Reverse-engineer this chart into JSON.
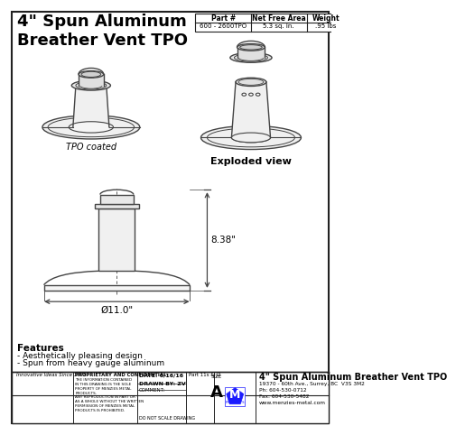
{
  "title": "4\" Spun Aluminum\nBreather Vent TPO",
  "bg_color": "#ffffff",
  "table_headers": [
    "Part #",
    "Net Free Area",
    "Weight"
  ],
  "table_values": [
    "600 - 2600TPO",
    "5.3 sq. in.",
    ".95 lbs"
  ],
  "label_tpo": "TPO coated",
  "label_exploded": "Exploded view",
  "dim_height": "8.38\"",
  "dim_width": "Ø11.0\"",
  "features_title": "Features",
  "features": [
    "- Aesthetically pleasing design",
    "- Spun from heavy gauge aluminum"
  ],
  "footer_left1": "Innovative Ideas Since 1976",
  "footer_prop": "PROPRIETARY AND CONFIDENTIAL",
  "footer_prop_text": "THE INFORMATION CONTAINED\nIN THIS DRAWING IS THE SOLE\nPROPERTY OF MENZIES METAL\nPRODUCTS.\nANY REPRODUCTION IN PART OR\nAS A WHOLE WITHOUT THE WRITTEN\nPERMISSION OF MENZIES METAL\nPRODUCTS IS PROHIBITED.",
  "footer_date": "DATE: 6/16/16",
  "footer_drawn": "DRAWN BY: ZV",
  "footer_comment": "COMMENT:",
  "footer_noscale": "DO NOT SCALE DRAWING",
  "footer_partno": "Part 11s & J2",
  "footer_title": "4\" Spun Aluminum Breather Vent TPO",
  "footer_size_label": "SIZE",
  "footer_size": "A",
  "footer_address": "19370 - 60th Ave., Surrey, BC  V3S 3M2\nPh: 604-530-0712\nFax: 604-530-5482\nwww.menzies-metal.com",
  "line_color": "#222222",
  "blue_color": "#1a1aff",
  "draw_color": "#444444"
}
